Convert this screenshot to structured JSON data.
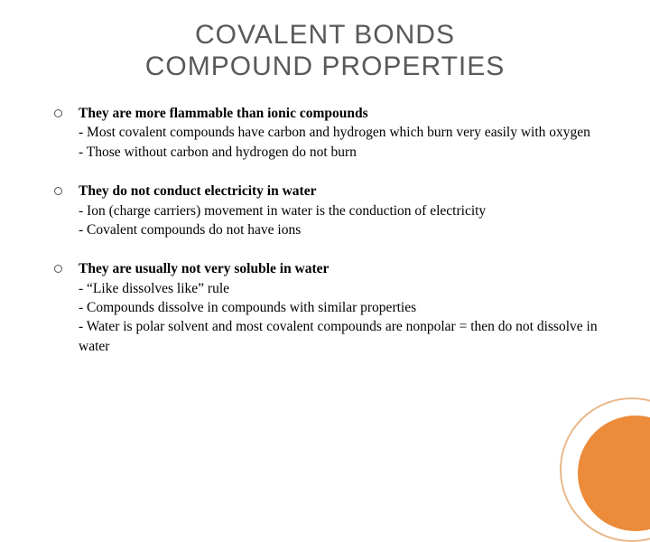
{
  "title_line1": "COVALENT BONDS",
  "title_line2": "COMPOUND PROPERTIES",
  "items": [
    {
      "heading": "They are more flammable than ionic compounds",
      "subs": [
        "- Most covalent compounds have carbon and hydrogen which burn very easily with oxygen",
        "- Those without carbon and hydrogen do not burn"
      ]
    },
    {
      "heading": "They do not conduct electricity in water",
      "subs": [
        "- Ion (charge carriers) movement in water is the conduction of electricity",
        "- Covalent compounds do not have ions"
      ]
    },
    {
      "heading": "They are usually not very soluble in water",
      "subs": [
        "- “Like dissolves like” rule",
        "- Compounds dissolve in compounds with similar properties",
        "- Water is polar solvent and most covalent compounds are nonpolar = then do not dissolve in water"
      ]
    }
  ],
  "decoration": {
    "outer_border_color": "#e8b98a",
    "inner_fill_color": "#ec8b3a"
  }
}
